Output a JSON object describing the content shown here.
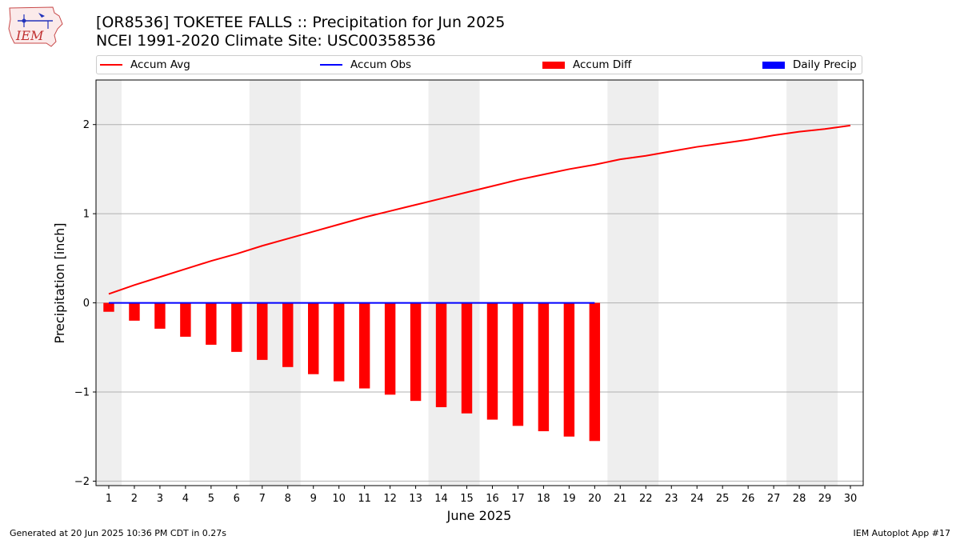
{
  "header": {
    "title_line1": "[OR8536] TOKETEE FALLS :: Precipitation for Jun 2025",
    "title_line2": "NCEI 1991-2020 Climate Site: USC00358536",
    "logo_text": "IEM"
  },
  "legend": {
    "items": [
      {
        "label": "Accum Avg",
        "color": "#ff0000",
        "kind": "line"
      },
      {
        "label": "Accum Obs",
        "color": "#0000ff",
        "kind": "line"
      },
      {
        "label": "Accum Diff",
        "color": "#ff0000",
        "kind": "box"
      },
      {
        "label": "Daily Precip",
        "color": "#0000ff",
        "kind": "box"
      }
    ]
  },
  "footer": {
    "left": "Generated at 20 Jun 2025 10:36 PM CDT in 0.27s",
    "right": "IEM Autoplot App #17"
  },
  "chart_data": {
    "type": "bar",
    "xlabel": "June 2025",
    "ylabel": "Precipitation [inch]",
    "xlim": [
      0.5,
      30.5
    ],
    "ylim": [
      -2.05,
      2.5
    ],
    "y_ticks": [
      -2,
      -1,
      0,
      1,
      2
    ],
    "y_tick_labels": [
      "−2",
      "−1",
      "0",
      "1",
      "2"
    ],
    "x_ticks": [
      1,
      2,
      3,
      4,
      5,
      6,
      7,
      8,
      9,
      10,
      11,
      12,
      13,
      14,
      15,
      16,
      17,
      18,
      19,
      20,
      21,
      22,
      23,
      24,
      25,
      26,
      27,
      28,
      29,
      30
    ],
    "grid": "y",
    "weekend_shading": [
      [
        0.5,
        1.5
      ],
      [
        6.5,
        8.5
      ],
      [
        13.5,
        15.5
      ],
      [
        20.5,
        22.5
      ],
      [
        27.5,
        29.5
      ]
    ],
    "shade_color": "#eeeeee",
    "series": [
      {
        "name": "Accum Avg",
        "kind": "line",
        "color": "#ff0000",
        "x": [
          1,
          2,
          3,
          4,
          5,
          6,
          7,
          8,
          9,
          10,
          11,
          12,
          13,
          14,
          15,
          16,
          17,
          18,
          19,
          20,
          21,
          22,
          23,
          24,
          25,
          26,
          27,
          28,
          29,
          30
        ],
        "values": [
          0.1,
          0.2,
          0.29,
          0.38,
          0.47,
          0.55,
          0.64,
          0.72,
          0.8,
          0.88,
          0.96,
          1.03,
          1.1,
          1.17,
          1.24,
          1.31,
          1.38,
          1.44,
          1.5,
          1.55,
          1.61,
          1.65,
          1.7,
          1.75,
          1.79,
          1.83,
          1.88,
          1.92,
          1.95,
          1.99
        ]
      },
      {
        "name": "Accum Obs",
        "kind": "line",
        "color": "#0000ff",
        "x": [
          1,
          2,
          3,
          4,
          5,
          6,
          7,
          8,
          9,
          10,
          11,
          12,
          13,
          14,
          15,
          16,
          17,
          18,
          19,
          20
        ],
        "values": [
          0,
          0,
          0,
          0,
          0,
          0,
          0,
          0,
          0,
          0,
          0,
          0,
          0,
          0,
          0,
          0,
          0,
          0,
          0,
          0
        ]
      },
      {
        "name": "Accum Diff",
        "kind": "bar",
        "color": "#ff0000",
        "x": [
          1,
          2,
          3,
          4,
          5,
          6,
          7,
          8,
          9,
          10,
          11,
          12,
          13,
          14,
          15,
          16,
          17,
          18,
          19,
          20
        ],
        "values": [
          -0.1,
          -0.2,
          -0.29,
          -0.38,
          -0.47,
          -0.55,
          -0.64,
          -0.72,
          -0.8,
          -0.88,
          -0.96,
          -1.03,
          -1.1,
          -1.17,
          -1.24,
          -1.31,
          -1.38,
          -1.44,
          -1.5,
          -1.55
        ]
      },
      {
        "name": "Daily Precip",
        "kind": "bar",
        "color": "#0000ff",
        "x": [
          1,
          2,
          3,
          4,
          5,
          6,
          7,
          8,
          9,
          10,
          11,
          12,
          13,
          14,
          15,
          16,
          17,
          18,
          19,
          20
        ],
        "values": [
          0,
          0,
          0,
          0,
          0,
          0,
          0,
          0,
          0,
          0,
          0,
          0,
          0,
          0,
          0,
          0,
          0,
          0,
          0,
          0
        ]
      }
    ]
  }
}
